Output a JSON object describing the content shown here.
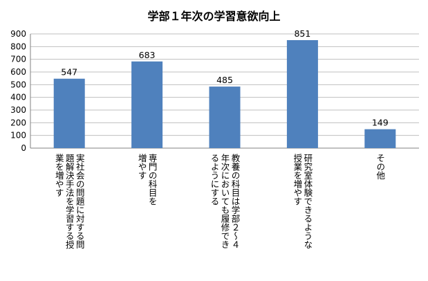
{
  "chart_data": {
    "type": "bar",
    "title": "学部１年次の学習意欲向上",
    "xlabel": "",
    "ylabel": "",
    "categories": [
      "実社会の問題に対する問題解決手法を学習する授業を増やす",
      "専門の科目を増やす",
      "教養の科目は学部２～４年次においても履修できるようにする",
      "研究室体験できるような授業を増やす",
      "その他"
    ],
    "category_lines": [
      [
        "実社会の問題に対する問",
        "題解決手法を学習する授",
        "業を増やす"
      ],
      [
        "専門の科目を",
        "増やす"
      ],
      [
        "教養の科目は学部２～４",
        "年次においても履修でき",
        "るようにする"
      ],
      [
        "研究室体験できるような",
        "授業を増やす"
      ],
      [
        "その他"
      ]
    ],
    "values": [
      547,
      683,
      485,
      851,
      149
    ],
    "data_labels": [
      "547",
      "683",
      "485",
      "851",
      "149"
    ],
    "ylim": [
      0,
      900
    ],
    "yticks": [
      "0",
      "100",
      "200",
      "300",
      "400",
      "500",
      "600",
      "700",
      "800",
      "900"
    ],
    "grid": true,
    "legend": "none",
    "colors": {
      "bar": "#4F81BD",
      "grid": "#bfbfbf",
      "axis": "#808080"
    }
  }
}
